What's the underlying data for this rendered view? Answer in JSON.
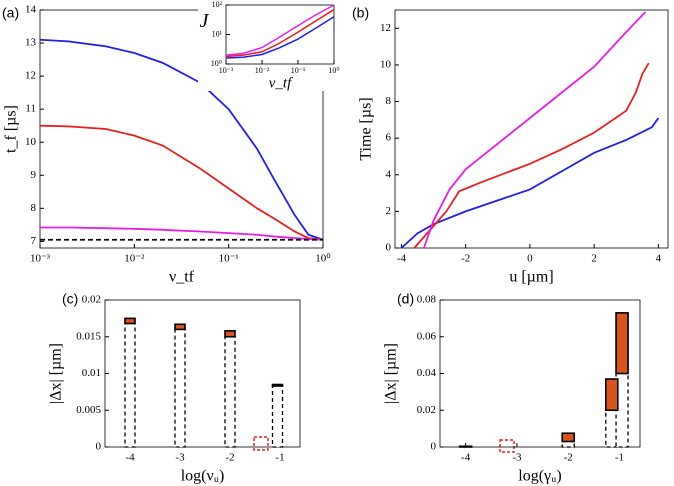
{
  "chart_data": [
    {
      "type": "line",
      "label": "(a)",
      "xlabel": "ν_tf",
      "ylabel": "t_f [µs]",
      "xscale": "log",
      "xlim": [
        0.001,
        1
      ],
      "xticks": [
        {
          "value": 0.001,
          "label": "10⁻³"
        },
        {
          "value": 0.01,
          "label": "10⁻²"
        },
        {
          "value": 0.1,
          "label": "10⁻¹"
        },
        {
          "value": 1,
          "label": "10⁰"
        }
      ],
      "ylim": [
        6.8,
        14
      ],
      "yticks": [
        7,
        8,
        9,
        10,
        11,
        12,
        13,
        14
      ],
      "x": [
        0.001,
        0.002,
        0.005,
        0.01,
        0.02,
        0.05,
        0.1,
        0.2,
        0.3,
        0.5,
        0.7,
        1
      ],
      "series": [
        {
          "color": "#1f1fe6",
          "values": [
            13.1,
            13.05,
            12.9,
            12.7,
            12.4,
            11.8,
            11.0,
            9.8,
            8.9,
            7.8,
            7.2,
            7.05
          ]
        },
        {
          "color": "#e61f1f",
          "values": [
            10.5,
            10.48,
            10.4,
            10.2,
            9.9,
            9.2,
            8.6,
            8.0,
            7.7,
            7.3,
            7.1,
            7.05
          ]
        },
        {
          "color": "#e61fe6",
          "values": [
            7.42,
            7.42,
            7.4,
            7.38,
            7.35,
            7.3,
            7.25,
            7.2,
            7.15,
            7.1,
            7.07,
            7.05
          ]
        },
        {
          "color": "#000000",
          "dashed": true,
          "values": [
            7.05,
            7.05,
            7.05,
            7.05,
            7.05,
            7.05,
            7.05,
            7.05,
            7.05,
            7.05,
            7.05,
            7.05
          ]
        }
      ]
    },
    {
      "type": "line",
      "ylabel": "J",
      "xlabel": "ν_tf",
      "xscale": "log",
      "yscale": "log",
      "xlim": [
        0.001,
        1
      ],
      "xticks": [
        {
          "value": 0.001,
          "label": "10⁻³"
        },
        {
          "value": 0.01,
          "label": "10⁻²"
        },
        {
          "value": 0.1,
          "label": "10⁻¹"
        },
        {
          "value": 1,
          "label": "10⁰"
        }
      ],
      "ylim": [
        1,
        100
      ],
      "yticks": [
        {
          "value": 1,
          "label": "10⁰"
        },
        {
          "value": 10,
          "label": "10¹"
        },
        {
          "value": 100,
          "label": "10²"
        }
      ],
      "x": [
        0.001,
        0.003,
        0.01,
        0.03,
        0.1,
        0.3,
        1
      ],
      "series": [
        {
          "color": "#1f1fe6",
          "values": [
            1.6,
            1.7,
            2.1,
            3.5,
            7,
            16,
            40
          ]
        },
        {
          "color": "#e61f1f",
          "values": [
            1.8,
            2,
            2.6,
            5,
            12,
            28,
            70
          ]
        },
        {
          "color": "#e61fe6",
          "values": [
            2,
            2.3,
            3.6,
            8,
            20,
            45,
            100
          ]
        }
      ]
    },
    {
      "type": "line",
      "label": "(b)",
      "xlabel": "u [µm]",
      "ylabel": "Time [µs]",
      "xlim": [
        -4.2,
        4.3
      ],
      "xticks": [
        -4,
        -2,
        0,
        2,
        4
      ],
      "ylim": [
        0,
        13
      ],
      "yticks": [
        0,
        2,
        4,
        6,
        8,
        10,
        12
      ],
      "series": [
        {
          "color": "#1f1fe6",
          "x": [
            -4,
            -3.5,
            -3,
            -2,
            -1,
            0,
            1,
            2,
            3,
            3.8,
            4
          ],
          "values": [
            0,
            0.8,
            1.3,
            2,
            2.6,
            3.2,
            4.2,
            5.2,
            5.9,
            6.6,
            7.1
          ]
        },
        {
          "color": "#e61f1f",
          "x": [
            -3.6,
            -3,
            -2.6,
            -2.2,
            -1.5,
            0,
            1,
            2,
            3,
            3.3,
            3.5,
            3.7
          ],
          "values": [
            0,
            1.2,
            2,
            3.1,
            3.6,
            4.6,
            5.4,
            6.3,
            7.5,
            8.5,
            9.5,
            10.1
          ]
        },
        {
          "color": "#e61fe6",
          "x": [
            -3.3,
            -3,
            -2.5,
            -2,
            -1,
            0,
            1,
            2,
            3,
            3.6
          ],
          "values": [
            0,
            1.5,
            3.2,
            4.3,
            5.7,
            7.1,
            8.5,
            9.9,
            11.8,
            12.9
          ]
        }
      ]
    },
    {
      "type": "bar",
      "label": "(c)",
      "xlabel": "log(νᵤ)",
      "ylabel": "|Δx| [µm]",
      "xlim": [
        -4.5,
        -0.6
      ],
      "xticks": [
        -4,
        -3,
        -2,
        -1
      ],
      "ylim": [
        0,
        0.02
      ],
      "yticks": [
        0,
        0.005,
        0.01,
        0.015,
        0.02
      ],
      "x": [
        -4,
        -3,
        -2,
        -1.05
      ],
      "series": [
        {
          "color": "#ffffff",
          "dashed": true,
          "values": [
            0.0168,
            0.016,
            0.015,
            0.0083
          ]
        },
        {
          "color": "#d9541e",
          "values": [
            0.0007,
            0.0007,
            0.0008,
            0.0002
          ]
        }
      ]
    },
    {
      "type": "bar",
      "label": "(d)",
      "xlabel": "log(γᵤ)",
      "ylabel": "|Δx| [µm]",
      "xlim": [
        -4.5,
        -0.6
      ],
      "xticks": [
        -4,
        -3,
        -2,
        -1
      ],
      "ylim": [
        0,
        0.08
      ],
      "yticks": [
        0,
        0.02,
        0.04,
        0.06,
        0.08
      ],
      "x": [
        -4,
        -3,
        -2,
        -1.15,
        -0.95
      ],
      "series": [
        {
          "color": "#ffffff",
          "dashed": true,
          "values": [
            0,
            0,
            0.003,
            0.02,
            0.04
          ]
        },
        {
          "color": "#d9541e",
          "values": [
            0.0004,
            0,
            0.0045,
            0.017,
            0.033
          ]
        }
      ]
    }
  ]
}
